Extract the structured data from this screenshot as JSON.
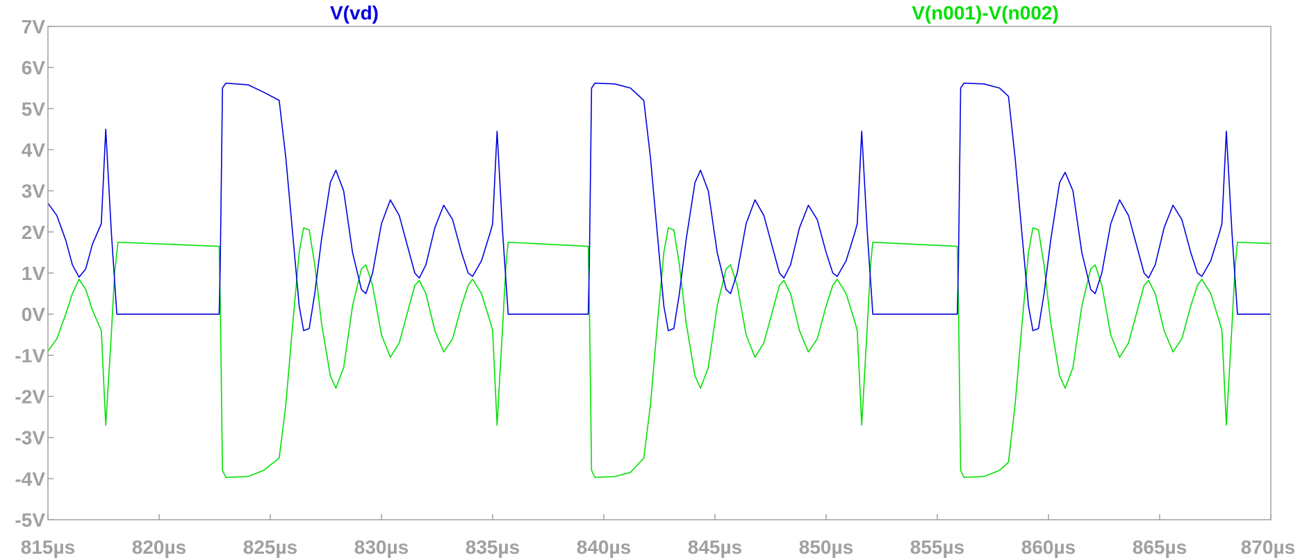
{
  "chart_data": {
    "type": "line",
    "title": "",
    "xlabel": "",
    "ylabel": "",
    "xlim": [
      815,
      870
    ],
    "ylim": [
      -5,
      7
    ],
    "x_unit": "µs",
    "y_unit": "V",
    "x_ticks": [
      "815µs",
      "820µs",
      "825µs",
      "830µs",
      "835µs",
      "840µs",
      "845µs",
      "850µs",
      "855µs",
      "860µs",
      "865µs",
      "870µs"
    ],
    "y_ticks": [
      "7V",
      "6V",
      "5V",
      "4V",
      "3V",
      "2V",
      "1V",
      "0V",
      "-1V",
      "-2V",
      "-3V",
      "-4V",
      "-5V"
    ],
    "grid": false,
    "legend": "top",
    "series": [
      {
        "name": "V(vd)",
        "color": "#0000e0",
        "points": [
          [
            815.0,
            2.7
          ],
          [
            815.4,
            2.4
          ],
          [
            815.8,
            1.8
          ],
          [
            816.1,
            1.2
          ],
          [
            816.4,
            0.9
          ],
          [
            816.7,
            1.1
          ],
          [
            817.0,
            1.7
          ],
          [
            817.4,
            2.2
          ],
          [
            817.6,
            4.5
          ],
          [
            817.85,
            2.0
          ],
          [
            818.1,
            0.0
          ],
          [
            822.7,
            0.0
          ],
          [
            822.75,
            1.2
          ],
          [
            822.85,
            5.5
          ],
          [
            823.0,
            5.62
          ],
          [
            824.0,
            5.58
          ],
          [
            824.7,
            5.4
          ],
          [
            825.4,
            5.2
          ],
          [
            825.7,
            3.8
          ],
          [
            826.0,
            2.0
          ],
          [
            826.3,
            0.2
          ],
          [
            826.5,
            -0.4
          ],
          [
            826.75,
            -0.35
          ],
          [
            827.0,
            0.5
          ],
          [
            827.3,
            1.8
          ],
          [
            827.7,
            3.2
          ],
          [
            827.95,
            3.5
          ],
          [
            828.3,
            3.0
          ],
          [
            828.7,
            1.5
          ],
          [
            829.1,
            0.6
          ],
          [
            829.3,
            0.5
          ],
          [
            829.6,
            1.0
          ],
          [
            830.0,
            2.2
          ],
          [
            830.4,
            2.78
          ],
          [
            830.8,
            2.4
          ],
          [
            831.2,
            1.6
          ],
          [
            831.5,
            1.0
          ],
          [
            831.7,
            0.88
          ],
          [
            832.0,
            1.2
          ],
          [
            832.4,
            2.1
          ],
          [
            832.8,
            2.65
          ],
          [
            833.2,
            2.3
          ],
          [
            833.6,
            1.5
          ],
          [
            833.9,
            1.0
          ],
          [
            834.1,
            0.92
          ],
          [
            834.5,
            1.3
          ],
          [
            834.9,
            2.0
          ],
          [
            835.0,
            2.2
          ],
          [
            835.2,
            4.45
          ],
          [
            835.45,
            2.0
          ],
          [
            835.7,
            0.0
          ],
          [
            839.3,
            0.0
          ],
          [
            839.35,
            1.2
          ],
          [
            839.45,
            5.5
          ],
          [
            839.6,
            5.62
          ],
          [
            840.5,
            5.6
          ],
          [
            841.2,
            5.5
          ],
          [
            841.8,
            5.2
          ],
          [
            842.1,
            3.8
          ],
          [
            842.4,
            2.0
          ],
          [
            842.7,
            0.2
          ],
          [
            842.9,
            -0.4
          ],
          [
            843.15,
            -0.35
          ],
          [
            843.4,
            0.5
          ],
          [
            843.7,
            1.8
          ],
          [
            844.1,
            3.2
          ],
          [
            844.35,
            3.5
          ],
          [
            844.7,
            3.0
          ],
          [
            845.1,
            1.5
          ],
          [
            845.5,
            0.6
          ],
          [
            845.7,
            0.5
          ],
          [
            846.0,
            1.0
          ],
          [
            846.4,
            2.2
          ],
          [
            846.8,
            2.78
          ],
          [
            847.2,
            2.4
          ],
          [
            847.6,
            1.6
          ],
          [
            847.9,
            1.0
          ],
          [
            848.1,
            0.88
          ],
          [
            848.4,
            1.2
          ],
          [
            848.8,
            2.1
          ],
          [
            849.2,
            2.65
          ],
          [
            849.6,
            2.3
          ],
          [
            850.0,
            1.5
          ],
          [
            850.3,
            1.0
          ],
          [
            850.5,
            0.92
          ],
          [
            850.9,
            1.3
          ],
          [
            851.3,
            2.0
          ],
          [
            851.4,
            2.2
          ],
          [
            851.6,
            4.45
          ],
          [
            851.85,
            2.0
          ],
          [
            852.1,
            0.0
          ],
          [
            855.9,
            0.0
          ],
          [
            855.95,
            1.2
          ],
          [
            856.05,
            5.5
          ],
          [
            856.2,
            5.62
          ],
          [
            857.1,
            5.6
          ],
          [
            857.8,
            5.5
          ],
          [
            858.2,
            5.3
          ],
          [
            858.5,
            3.8
          ],
          [
            858.8,
            2.0
          ],
          [
            859.1,
            0.2
          ],
          [
            859.3,
            -0.4
          ],
          [
            859.55,
            -0.35
          ],
          [
            859.8,
            0.5
          ],
          [
            860.1,
            1.8
          ],
          [
            860.5,
            3.2
          ],
          [
            860.75,
            3.45
          ],
          [
            861.1,
            3.0
          ],
          [
            861.5,
            1.5
          ],
          [
            861.9,
            0.6
          ],
          [
            862.1,
            0.5
          ],
          [
            862.4,
            1.0
          ],
          [
            862.8,
            2.2
          ],
          [
            863.2,
            2.78
          ],
          [
            863.6,
            2.4
          ],
          [
            864.0,
            1.6
          ],
          [
            864.3,
            1.0
          ],
          [
            864.5,
            0.88
          ],
          [
            864.8,
            1.2
          ],
          [
            865.2,
            2.1
          ],
          [
            865.6,
            2.65
          ],
          [
            866.0,
            2.3
          ],
          [
            866.4,
            1.5
          ],
          [
            866.7,
            1.0
          ],
          [
            866.9,
            0.92
          ],
          [
            867.3,
            1.3
          ],
          [
            867.7,
            2.0
          ],
          [
            867.8,
            2.2
          ],
          [
            868.0,
            4.45
          ],
          [
            868.25,
            2.0
          ],
          [
            868.5,
            0.0
          ],
          [
            870.0,
            0.0
          ]
        ]
      },
      {
        "name": "V(n001)-V(n002)",
        "color": "#00e000",
        "points": [
          [
            815.0,
            -0.9
          ],
          [
            815.4,
            -0.6
          ],
          [
            815.8,
            0.0
          ],
          [
            816.1,
            0.5
          ],
          [
            816.4,
            0.85
          ],
          [
            816.7,
            0.6
          ],
          [
            817.0,
            0.1
          ],
          [
            817.4,
            -0.4
          ],
          [
            817.6,
            -2.7
          ],
          [
            817.85,
            -0.5
          ],
          [
            818.0,
            1.0
          ],
          [
            818.15,
            1.75
          ],
          [
            822.7,
            1.65
          ],
          [
            822.75,
            0.3
          ],
          [
            822.85,
            -3.8
          ],
          [
            823.0,
            -3.97
          ],
          [
            824.0,
            -3.95
          ],
          [
            824.7,
            -3.8
          ],
          [
            825.4,
            -3.5
          ],
          [
            825.7,
            -2.2
          ],
          [
            826.0,
            -0.3
          ],
          [
            826.3,
            1.5
          ],
          [
            826.5,
            2.1
          ],
          [
            826.75,
            2.05
          ],
          [
            827.0,
            1.2
          ],
          [
            827.3,
            -0.2
          ],
          [
            827.7,
            -1.5
          ],
          [
            827.95,
            -1.8
          ],
          [
            828.3,
            -1.3
          ],
          [
            828.7,
            0.2
          ],
          [
            829.1,
            1.1
          ],
          [
            829.3,
            1.2
          ],
          [
            829.6,
            0.7
          ],
          [
            830.0,
            -0.5
          ],
          [
            830.4,
            -1.05
          ],
          [
            830.8,
            -0.7
          ],
          [
            831.2,
            0.1
          ],
          [
            831.5,
            0.7
          ],
          [
            831.7,
            0.82
          ],
          [
            832.0,
            0.5
          ],
          [
            832.4,
            -0.4
          ],
          [
            832.8,
            -0.92
          ],
          [
            833.2,
            -0.6
          ],
          [
            833.6,
            0.2
          ],
          [
            833.9,
            0.7
          ],
          [
            834.1,
            0.85
          ],
          [
            834.5,
            0.5
          ],
          [
            834.9,
            -0.2
          ],
          [
            835.0,
            -0.4
          ],
          [
            835.2,
            -2.7
          ],
          [
            835.45,
            -0.3
          ],
          [
            835.6,
            1.2
          ],
          [
            835.7,
            1.75
          ],
          [
            839.3,
            1.65
          ],
          [
            839.35,
            0.3
          ],
          [
            839.45,
            -3.8
          ],
          [
            839.6,
            -3.97
          ],
          [
            840.5,
            -3.95
          ],
          [
            841.2,
            -3.85
          ],
          [
            841.8,
            -3.5
          ],
          [
            842.1,
            -2.2
          ],
          [
            842.4,
            -0.3
          ],
          [
            842.7,
            1.5
          ],
          [
            842.9,
            2.1
          ],
          [
            843.15,
            2.05
          ],
          [
            843.4,
            1.2
          ],
          [
            843.7,
            -0.2
          ],
          [
            844.1,
            -1.5
          ],
          [
            844.35,
            -1.8
          ],
          [
            844.7,
            -1.3
          ],
          [
            845.1,
            0.2
          ],
          [
            845.5,
            1.1
          ],
          [
            845.7,
            1.2
          ],
          [
            846.0,
            0.7
          ],
          [
            846.4,
            -0.5
          ],
          [
            846.8,
            -1.05
          ],
          [
            847.2,
            -0.7
          ],
          [
            847.6,
            0.1
          ],
          [
            847.9,
            0.7
          ],
          [
            848.1,
            0.82
          ],
          [
            848.4,
            0.5
          ],
          [
            848.8,
            -0.4
          ],
          [
            849.2,
            -0.92
          ],
          [
            849.6,
            -0.6
          ],
          [
            850.0,
            0.2
          ],
          [
            850.3,
            0.7
          ],
          [
            850.5,
            0.85
          ],
          [
            850.9,
            0.5
          ],
          [
            851.3,
            -0.2
          ],
          [
            851.4,
            -0.4
          ],
          [
            851.6,
            -2.7
          ],
          [
            851.85,
            -0.3
          ],
          [
            852.0,
            1.2
          ],
          [
            852.1,
            1.75
          ],
          [
            855.9,
            1.65
          ],
          [
            855.95,
            0.3
          ],
          [
            856.05,
            -3.8
          ],
          [
            856.2,
            -3.97
          ],
          [
            857.1,
            -3.95
          ],
          [
            857.8,
            -3.8
          ],
          [
            858.2,
            -3.6
          ],
          [
            858.5,
            -2.2
          ],
          [
            858.8,
            -0.3
          ],
          [
            859.1,
            1.5
          ],
          [
            859.3,
            2.1
          ],
          [
            859.55,
            2.05
          ],
          [
            859.8,
            1.2
          ],
          [
            860.1,
            -0.2
          ],
          [
            860.5,
            -1.5
          ],
          [
            860.75,
            -1.8
          ],
          [
            861.1,
            -1.3
          ],
          [
            861.5,
            0.2
          ],
          [
            861.9,
            1.1
          ],
          [
            862.1,
            1.2
          ],
          [
            862.4,
            0.7
          ],
          [
            862.8,
            -0.5
          ],
          [
            863.2,
            -1.05
          ],
          [
            863.6,
            -0.7
          ],
          [
            864.0,
            0.1
          ],
          [
            864.3,
            0.7
          ],
          [
            864.5,
            0.82
          ],
          [
            864.8,
            0.5
          ],
          [
            865.2,
            -0.4
          ],
          [
            865.6,
            -0.92
          ],
          [
            866.0,
            -0.6
          ],
          [
            866.4,
            0.2
          ],
          [
            866.7,
            0.7
          ],
          [
            866.9,
            0.85
          ],
          [
            867.3,
            0.5
          ],
          [
            867.7,
            -0.2
          ],
          [
            867.8,
            -0.4
          ],
          [
            868.0,
            -2.7
          ],
          [
            868.25,
            -0.3
          ],
          [
            868.4,
            1.2
          ],
          [
            868.5,
            1.75
          ],
          [
            870.0,
            1.72
          ]
        ]
      }
    ]
  }
}
